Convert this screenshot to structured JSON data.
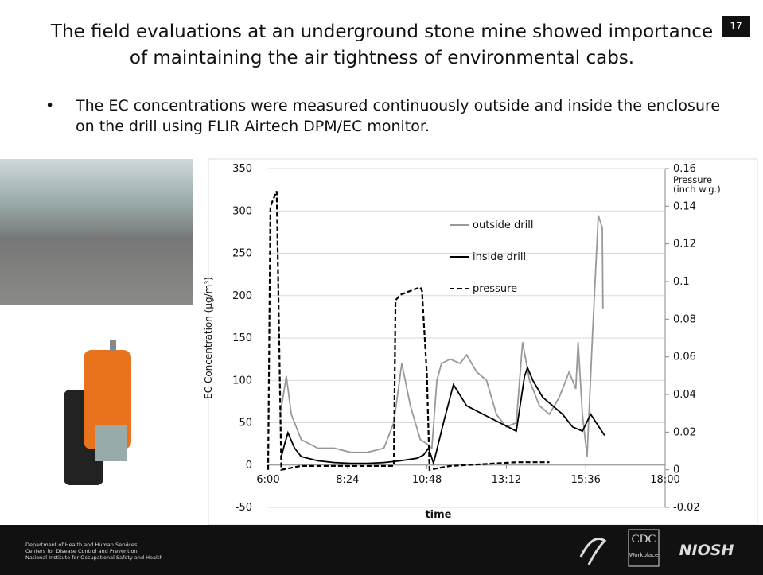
{
  "slide_title": "The field evaluations at an underground stone mine showed importance of maintaining the air tightness of environmental cabs.",
  "slide_number": "17",
  "bullet": "The EC concentrations were measured continuously outside and inside the enclosure on the drill using FLIR Airtech DPM/EC monitor.",
  "footer": {
    "lines": [
      "Department of Health and Human Services",
      "Centers for Disease Control and Prevention",
      "National Institute for Occupational Safety and Health"
    ],
    "cdc": "CDC",
    "cdc_sub": "Workplace",
    "niosh": "NIOSH"
  },
  "chart_data": {
    "type": "line",
    "xlabel": "time",
    "ylabel": "EC Concentration (µg/m³)",
    "y2label": "Pressure (inch w.g.)",
    "xlim": [
      6,
      18
    ],
    "xticks": [
      {
        "value": 6,
        "label": "6:00"
      },
      {
        "value": 8.4,
        "label": "8:24"
      },
      {
        "value": 10.8,
        "label": "10:48"
      },
      {
        "value": 13.2,
        "label": "13:12"
      },
      {
        "value": 15.6,
        "label": "15:36"
      },
      {
        "value": 18,
        "label": "18:00"
      }
    ],
    "ylim": [
      -50,
      350
    ],
    "yticks": [
      -50,
      0,
      50,
      100,
      150,
      200,
      250,
      300,
      350
    ],
    "y2lim": [
      -0.02,
      0.16
    ],
    "y2ticks": [
      -0.02,
      0,
      0.02,
      0.04,
      0.06,
      0.08,
      0.1,
      0.12,
      0.14,
      0.16
    ],
    "grid": true,
    "series": [
      {
        "name": "outside drill",
        "color": "#999999",
        "dash": "solid",
        "x": [
          6.36,
          6.45,
          6.55,
          6.7,
          7.0,
          7.5,
          8.0,
          8.5,
          9.0,
          9.5,
          9.8,
          10.04,
          10.3,
          10.6,
          10.8,
          10.95,
          11.1,
          11.24,
          11.5,
          11.8,
          12.0,
          12.3,
          12.6,
          12.9,
          13.2,
          13.5,
          13.69,
          13.9,
          14.2,
          14.5,
          14.8,
          15.1,
          15.3,
          15.37,
          15.5,
          15.64,
          15.8,
          15.98,
          16.1,
          16.12
        ],
        "values": [
          60,
          80,
          105,
          60,
          30,
          20,
          20,
          15,
          15,
          20,
          50,
          120,
          70,
          30,
          25,
          20,
          100,
          120,
          125,
          120,
          130,
          110,
          100,
          60,
          45,
          50,
          145,
          100,
          70,
          60,
          80,
          110,
          90,
          145,
          60,
          10,
          150,
          295,
          280,
          185
        ]
      },
      {
        "name": "inside drill",
        "color": "#000000",
        "dash": "solid",
        "x": [
          6.4,
          6.5,
          6.6,
          6.8,
          7.0,
          7.5,
          8.0,
          8.5,
          9.0,
          9.5,
          10.0,
          10.5,
          10.7,
          10.85,
          11.0,
          11.3,
          11.6,
          12.0,
          12.5,
          13.0,
          13.5,
          13.75,
          13.84,
          14.0,
          14.3,
          14.6,
          14.9,
          15.2,
          15.5,
          15.75,
          16.0,
          16.17
        ],
        "values": [
          10,
          25,
          38,
          20,
          10,
          5,
          3,
          2,
          2,
          3,
          5,
          8,
          12,
          20,
          2,
          50,
          95,
          70,
          60,
          50,
          40,
          105,
          115,
          100,
          80,
          70,
          60,
          45,
          40,
          60,
          45,
          35
        ]
      },
      {
        "name": "pressure",
        "color": "#000000",
        "dash": "dashed",
        "axis": "y2",
        "x": [
          6.0,
          6.07,
          6.26,
          6.4,
          7.0,
          8.0,
          9.0,
          9.8,
          9.85,
          10.0,
          10.3,
          10.6,
          10.65,
          10.8,
          10.88,
          11.5,
          12.5,
          13.5,
          14.5
        ],
        "values": [
          0,
          0.14,
          0.148,
          0,
          0.002,
          0.002,
          0.002,
          0.002,
          0.09,
          0.093,
          0.095,
          0.097,
          0.095,
          0.05,
          0,
          0.002,
          0.003,
          0.004,
          0.004
        ]
      }
    ]
  }
}
